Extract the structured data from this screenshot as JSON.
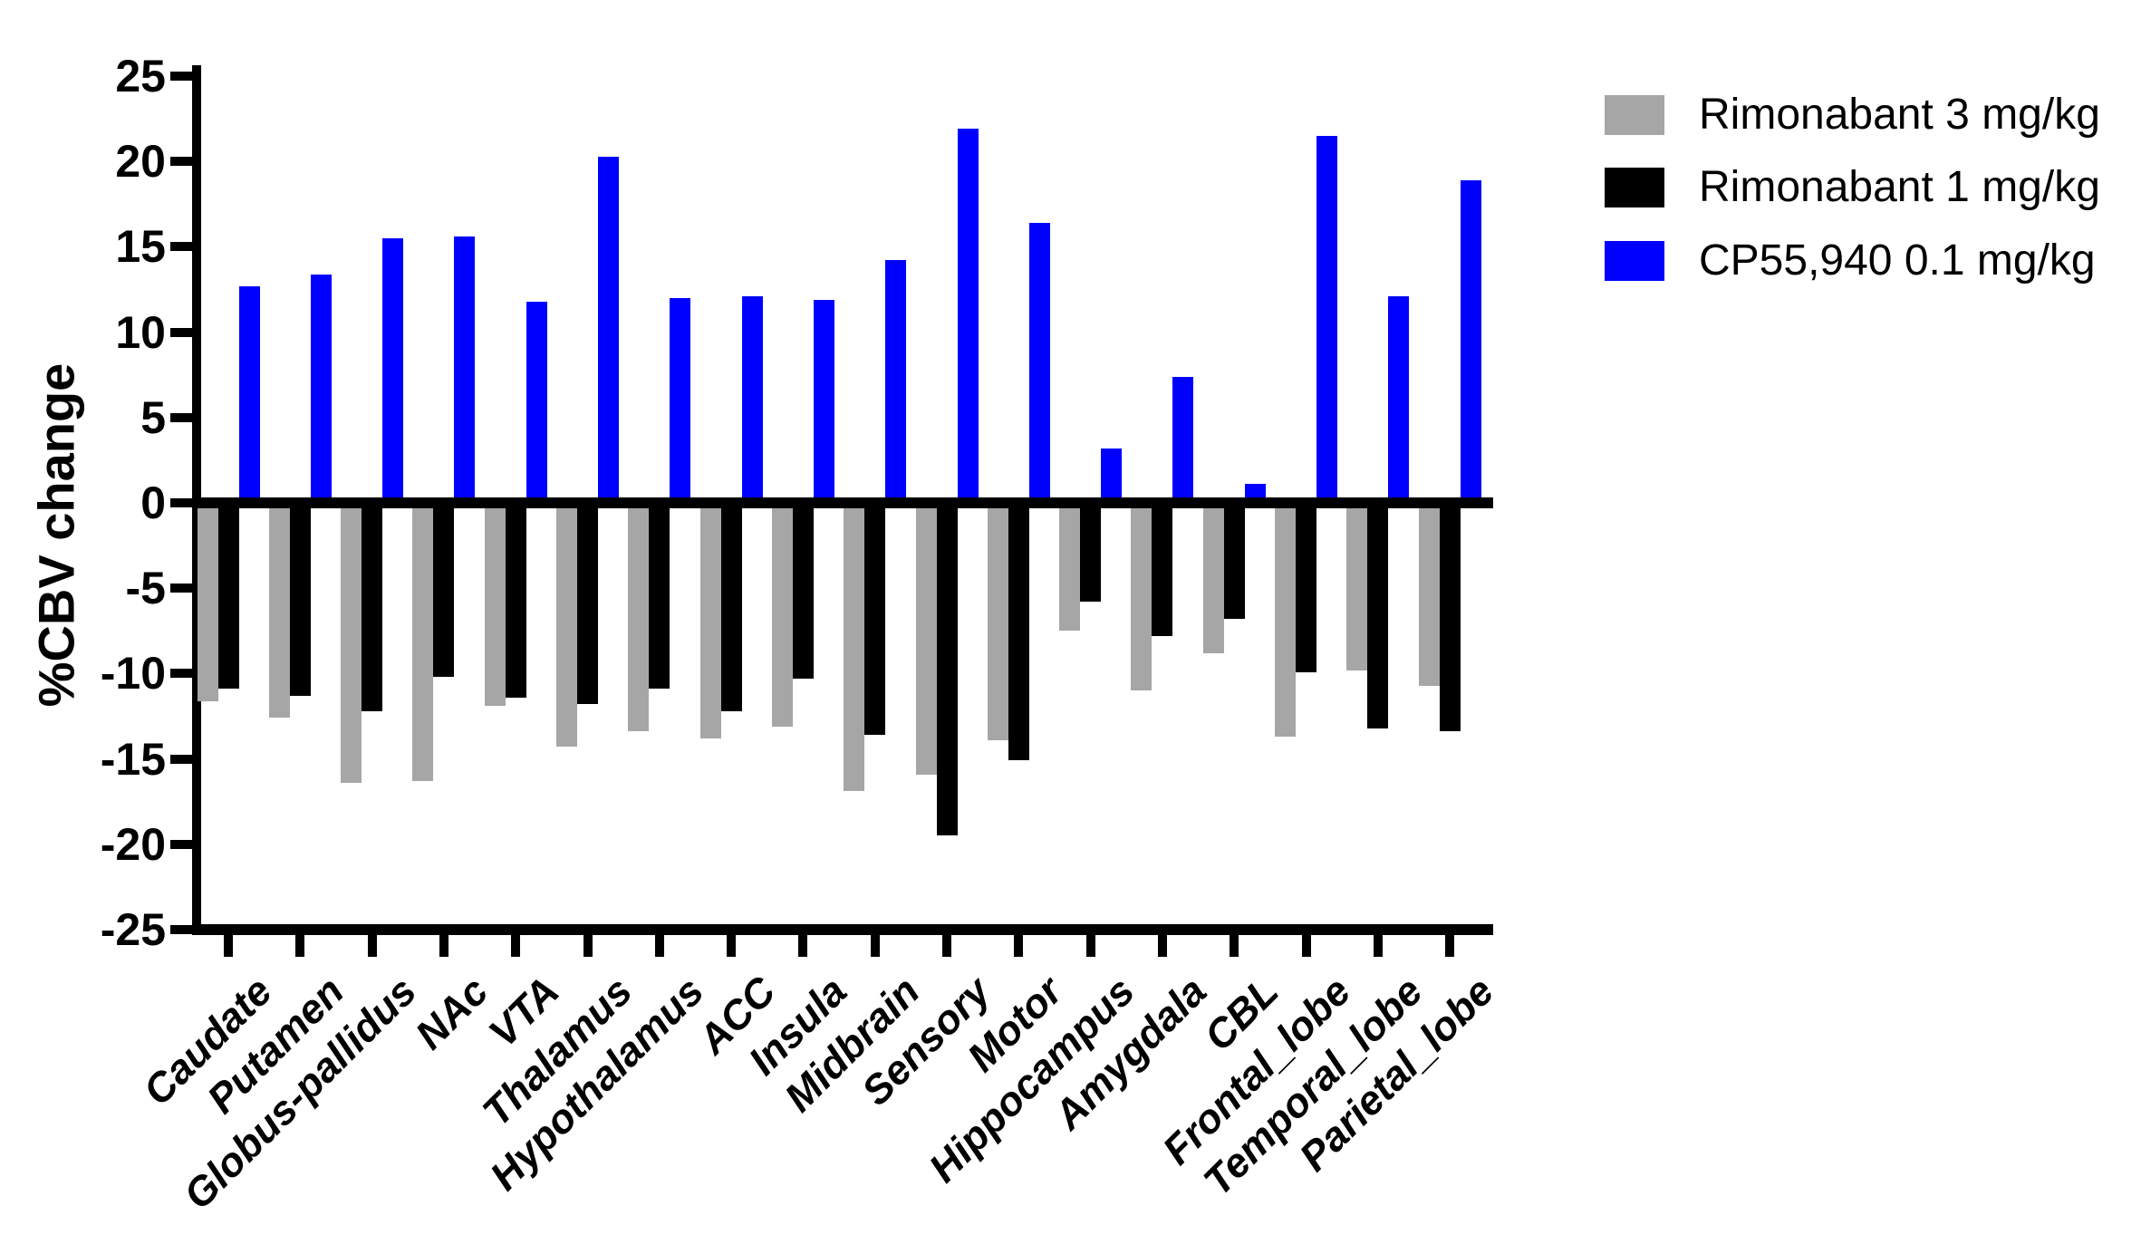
{
  "figure": {
    "y_axis_title": "%CBV change"
  },
  "legend": {
    "position": "top-right",
    "items": [
      {
        "label": "Rimonabant 3 mg/kg",
        "color": "#a6a6a6"
      },
      {
        "label": "Rimonabant 1 mg/kg",
        "color": "#000000"
      },
      {
        "label": "CP55,940 0.1 mg/kg",
        "color": "#0000ff"
      }
    ]
  },
  "chart_data": {
    "type": "bar",
    "title": "",
    "xlabel": "",
    "ylabel": "%CBV change",
    "ylim": [
      -25,
      25
    ],
    "ytick_step": 5,
    "grid": false,
    "legend_position": "top-right",
    "baseline": 0,
    "categories": [
      "Caudate",
      "Putamen",
      "Globus-pallidus",
      "NAc",
      "VTA",
      "Thalamus",
      "Hypothalamus",
      "ACC",
      "Insula",
      "Midbrain",
      "Sensory",
      "Motor",
      "Hippocampus",
      "Amygdala",
      "CBL",
      "Frontal_lobe",
      "Temporal_lobe",
      "Parietal_lobe"
    ],
    "series": [
      {
        "name": "Rimonabant 3 mg/kg",
        "color": "#a6a6a6",
        "values": [
          -11.6,
          -12.6,
          -16.4,
          -16.3,
          -11.9,
          -14.3,
          -13.4,
          -13.8,
          -13.1,
          -16.9,
          -15.9,
          -13.9,
          -7.5,
          -11.0,
          -8.8,
          -13.7,
          -9.8,
          -10.7
        ]
      },
      {
        "name": "Rimonabant 1 mg/kg",
        "color": "#000000",
        "values": [
          -10.9,
          -11.3,
          -12.2,
          -10.2,
          -11.4,
          -11.8,
          -10.9,
          -12.2,
          -10.3,
          -13.6,
          -19.5,
          -15.1,
          -5.8,
          -7.8,
          -6.8,
          -9.9,
          -13.2,
          -13.4
        ]
      },
      {
        "name": "CP55,940 0.1 mg/kg",
        "color": "#0000ff",
        "values": [
          12.7,
          13.4,
          15.5,
          15.6,
          11.8,
          20.3,
          12.0,
          12.1,
          11.9,
          14.2,
          21.9,
          16.4,
          3.2,
          7.4,
          1.1,
          21.5,
          12.1,
          18.9
        ]
      }
    ]
  }
}
